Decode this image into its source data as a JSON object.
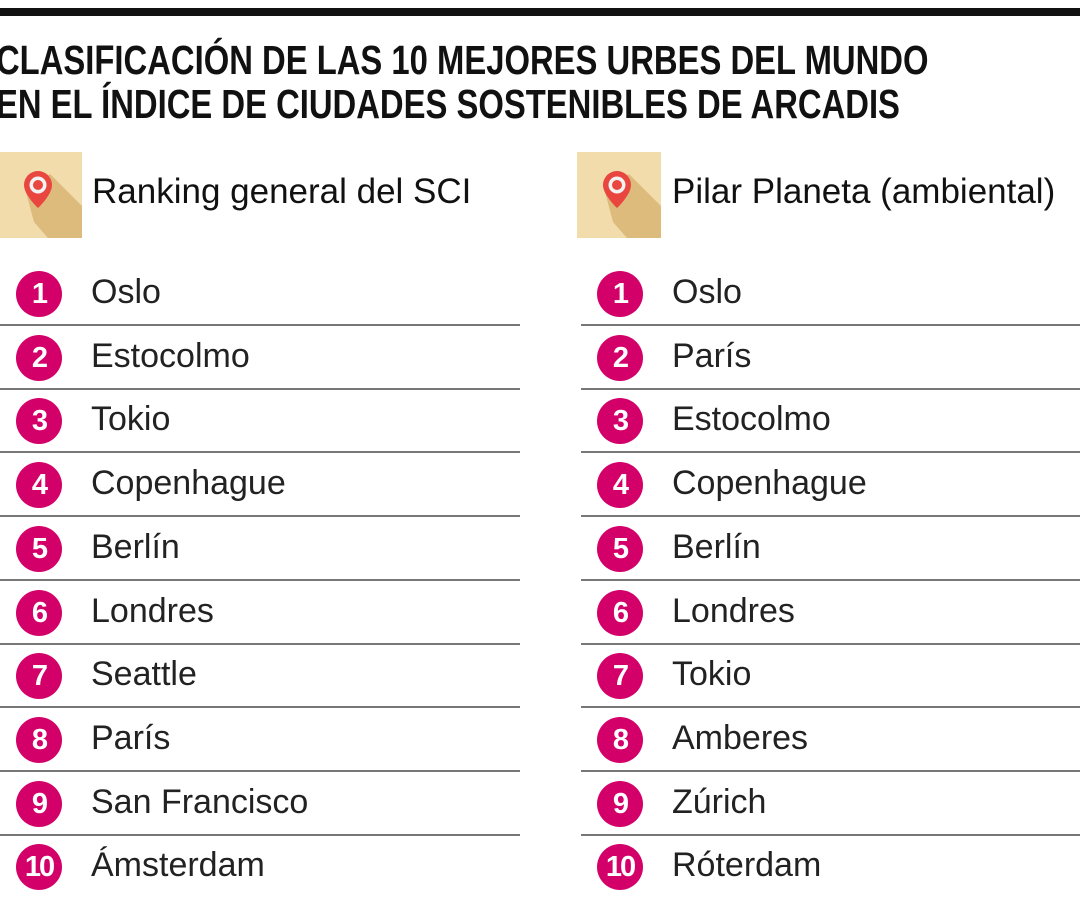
{
  "title_lines": [
    "CLASIFICACIÓN DE LAS 10 MEJORES URBES DEL MUNDO",
    "EN EL ÍNDICE DE CIUDADES SOSTENIBLES DE ARCADIS"
  ],
  "colors": {
    "badge": "#d4006a",
    "icon_bg": "#f2dcab",
    "pin": "#e8463e"
  },
  "columns": [
    {
      "heading": "Ranking general del SCI",
      "icon": "map-pin-icon",
      "items": [
        {
          "rank": "1",
          "city": "Oslo"
        },
        {
          "rank": "2",
          "city": "Estocolmo"
        },
        {
          "rank": "3",
          "city": "Tokio"
        },
        {
          "rank": "4",
          "city": "Copenhague"
        },
        {
          "rank": "5",
          "city": "Berlín"
        },
        {
          "rank": "6",
          "city": "Londres"
        },
        {
          "rank": "7",
          "city": "Seattle"
        },
        {
          "rank": "8",
          "city": "París"
        },
        {
          "rank": "9",
          "city": "San Francisco"
        },
        {
          "rank": "10",
          "city": "Ámsterdam"
        }
      ]
    },
    {
      "heading": "Pilar Planeta (ambiental)",
      "icon": "map-pin-icon",
      "items": [
        {
          "rank": "1",
          "city": "Oslo"
        },
        {
          "rank": "2",
          "city": "París"
        },
        {
          "rank": "3",
          "city": "Estocolmo"
        },
        {
          "rank": "4",
          "city": "Copenhague"
        },
        {
          "rank": "5",
          "city": "Berlín"
        },
        {
          "rank": "6",
          "city": "Londres"
        },
        {
          "rank": "7",
          "city": "Tokio"
        },
        {
          "rank": "8",
          "city": "Amberes"
        },
        {
          "rank": "9",
          "city": "Zúrich"
        },
        {
          "rank": "10",
          "city": "Róterdam"
        }
      ]
    }
  ]
}
